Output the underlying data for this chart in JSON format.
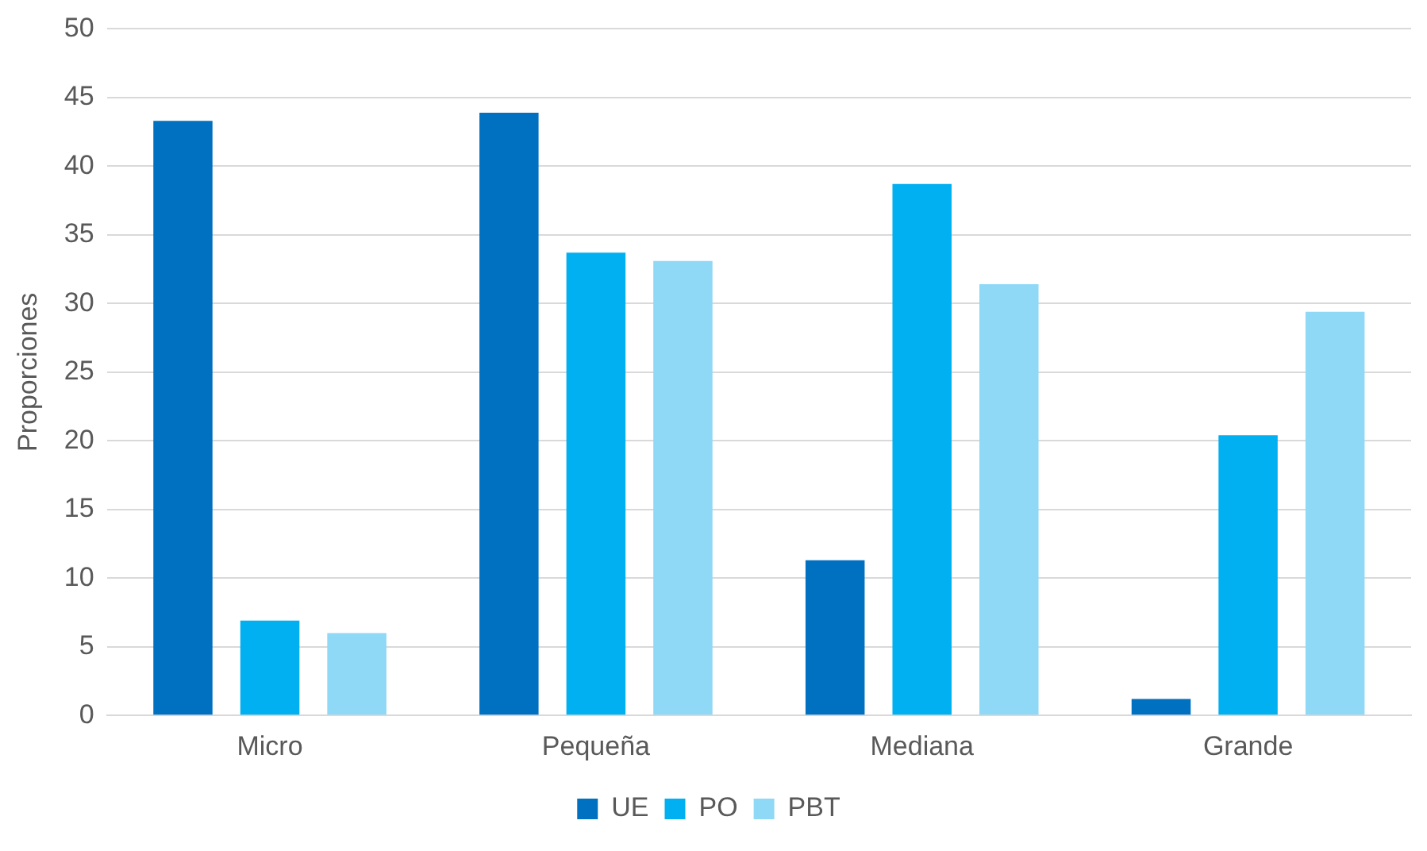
{
  "chart_data": {
    "type": "bar",
    "ylabel": "Proporciones",
    "categories": [
      "Micro",
      "Pequeña",
      "Mediana",
      "Grande"
    ],
    "series": [
      {
        "name": "UE",
        "color": "#0070c0",
        "values": [
          43.3,
          43.9,
          11.3,
          1.2
        ]
      },
      {
        "name": "PO",
        "color": "#00b0f0",
        "values": [
          6.9,
          33.7,
          38.7,
          20.4
        ]
      },
      {
        "name": "PBT",
        "color": "#8fd8f6",
        "values": [
          6.0,
          33.1,
          31.4,
          29.4
        ]
      }
    ],
    "ylim": [
      0,
      50
    ],
    "yticks": [
      0,
      5,
      10,
      15,
      20,
      25,
      30,
      35,
      40,
      45,
      50
    ],
    "grid": "y",
    "legend": "bottom"
  }
}
